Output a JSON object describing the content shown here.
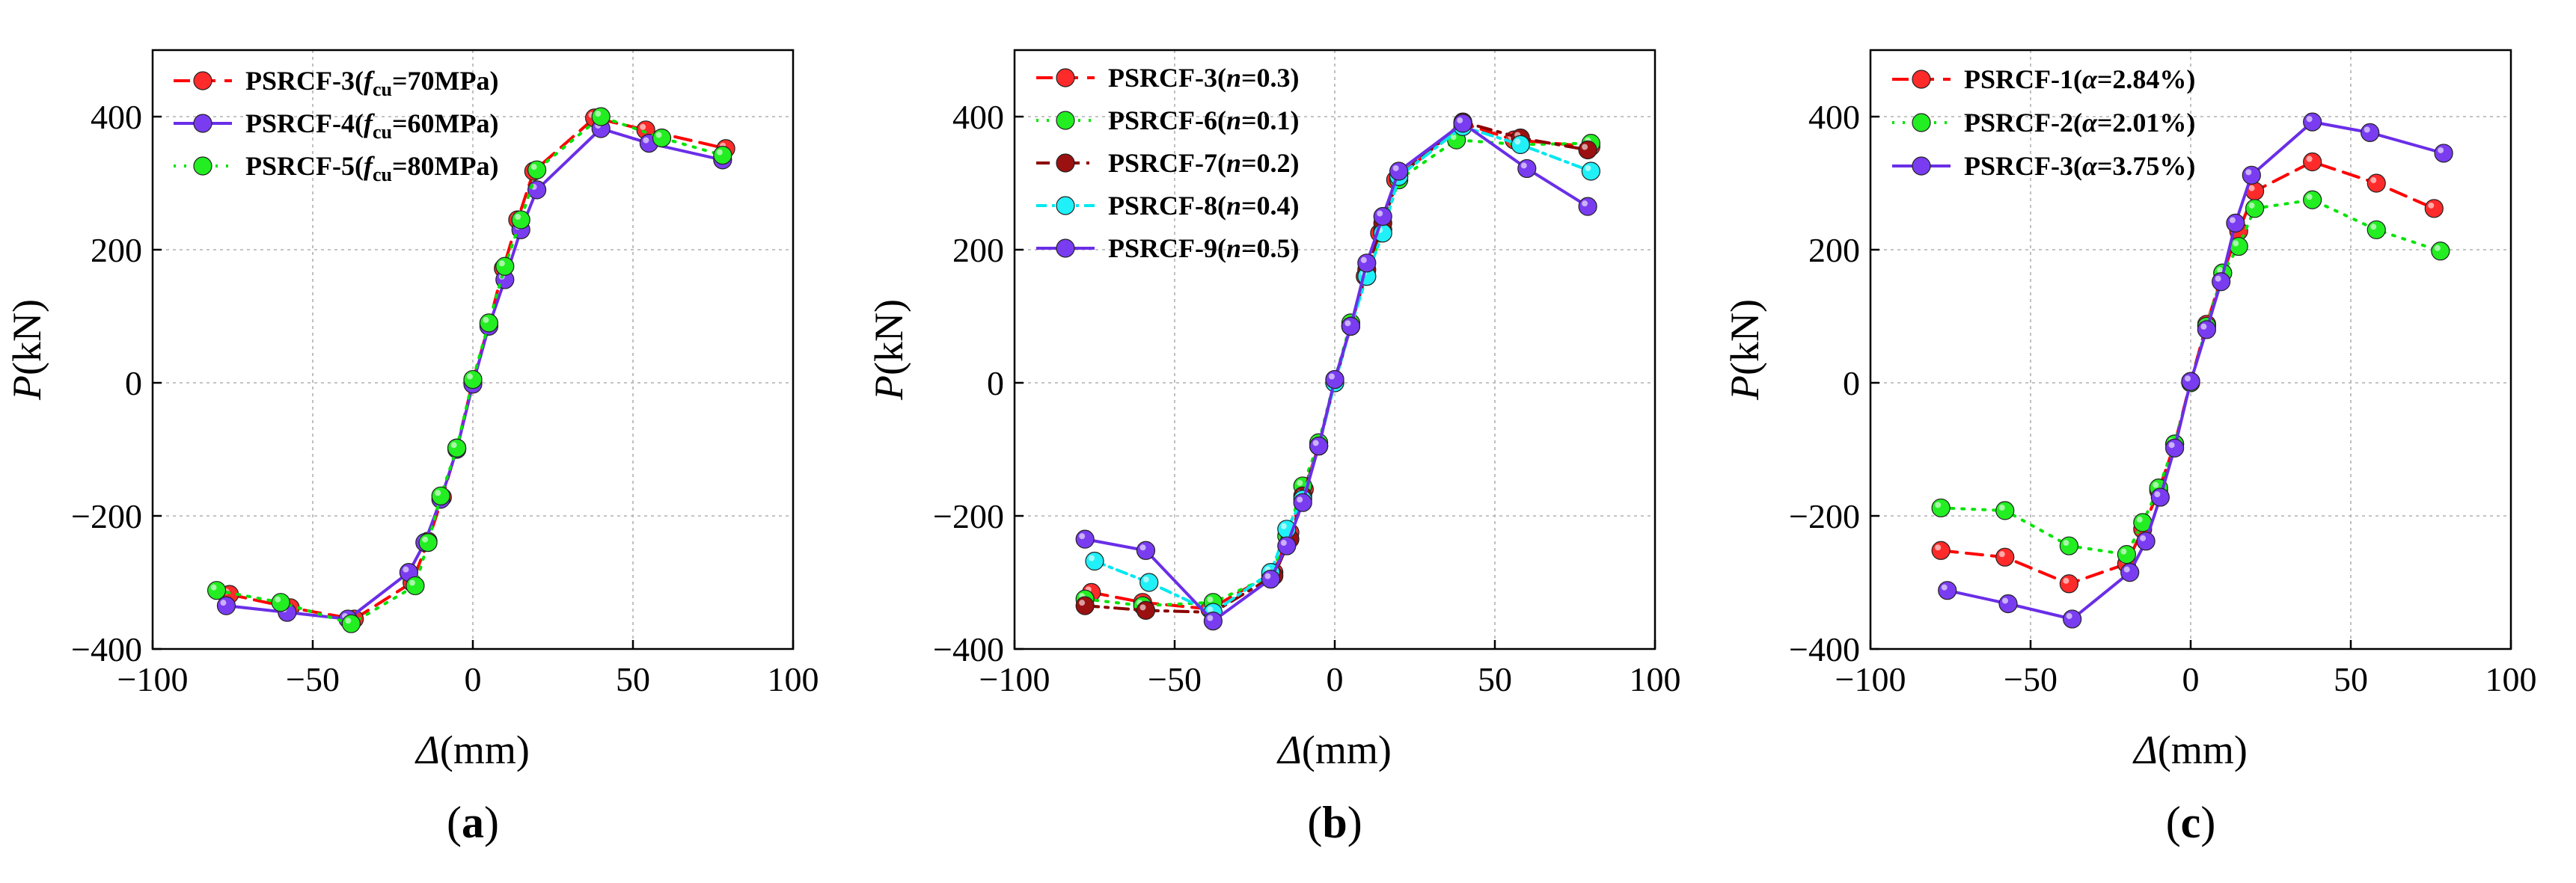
{
  "chart_data": [
    {
      "type": "line",
      "panel_label": {
        "open": "(",
        "letter": "a",
        "close": ")"
      },
      "xlabel": {
        "symbol": "Δ",
        "unit": "(mm)"
      },
      "ylabel": {
        "symbol": "P",
        "unit": "(kN)"
      },
      "xlim": [
        -100,
        100
      ],
      "ylim": [
        -400,
        500
      ],
      "xticks": [
        -100,
        -50,
        0,
        50,
        100
      ],
      "yticks": [
        -400,
        -200,
        0,
        200,
        400
      ],
      "grid": true,
      "legend_position": "top-left",
      "series": [
        {
          "name": "PSRCF-3(fcu=70MPa)",
          "label": {
            "prefix": "PSRCF-3(",
            "var": "f",
            "sub": "cu",
            "rest": "=70MPa)"
          },
          "color": "#ff0000",
          "marker_color": "#ff2a2a",
          "dash": "22 12",
          "x": [
            -76,
            -57,
            -37,
            -19,
            -14,
            -9.5,
            -5,
            0,
            5,
            9.5,
            14,
            19,
            38,
            54,
            79
          ],
          "y": [
            -318,
            -338,
            -355,
            -300,
            -238,
            -172,
            -98,
            2,
            88,
            172,
            245,
            318,
            398,
            380,
            352
          ]
        },
        {
          "name": "PSRCF-4(fcu=60MPa)",
          "label": {
            "prefix": "PSRCF-4(",
            "var": "f",
            "sub": "cu",
            "rest": "=60MPa)"
          },
          "color": "#6a2ee8",
          "marker_color": "#7a3cf0",
          "dash": "",
          "x": [
            -77,
            -58,
            -39,
            -20,
            -15,
            -10,
            -5,
            0,
            5,
            10,
            15,
            20,
            40,
            55,
            78
          ],
          "y": [
            -335,
            -345,
            -355,
            -285,
            -240,
            -175,
            -100,
            -2,
            85,
            155,
            230,
            290,
            382,
            360,
            335
          ]
        },
        {
          "name": "PSRCF-5(fcu=80MPa)",
          "label": {
            "prefix": "PSRCF-5(",
            "var": "f",
            "sub": "cu",
            "rest": "=80MPa)"
          },
          "color": "#00e400",
          "marker_color": "#22ee22",
          "dash": "3 11",
          "x": [
            -80,
            -60,
            -38,
            -18,
            -14,
            -10,
            -5,
            0,
            5,
            10,
            15,
            20,
            40,
            59,
            78
          ],
          "y": [
            -312,
            -330,
            -362,
            -305,
            -240,
            -170,
            -98,
            5,
            90,
            175,
            245,
            320,
            400,
            368,
            342
          ]
        }
      ]
    },
    {
      "type": "line",
      "panel_label": {
        "open": "(",
        "letter": "b",
        "close": ")"
      },
      "xlabel": {
        "symbol": "Δ",
        "unit": "(mm)"
      },
      "ylabel": {
        "symbol": "P",
        "unit": "(kN)"
      },
      "xlim": [
        -100,
        100
      ],
      "ylim": [
        -400,
        500
      ],
      "xticks": [
        -100,
        -50,
        0,
        50,
        100
      ],
      "yticks": [
        -400,
        -200,
        0,
        200,
        400
      ],
      "grid": true,
      "legend_position": "top-left",
      "series": [
        {
          "name": "PSRCF-3(n=0.3)",
          "label": {
            "prefix": "PSRCF-3(",
            "var": "n",
            "sub": "",
            "rest": "=0.3)"
          },
          "color": "#ff0000",
          "marker_color": "#ff2a2a",
          "dash": "22 12",
          "x": [
            -76,
            -60,
            -39,
            -19,
            -14,
            -9.5,
            -5,
            0,
            5,
            9.5,
            14,
            19,
            40,
            56,
            80
          ],
          "y": [
            -315,
            -330,
            -340,
            -285,
            -225,
            -160,
            -95,
            2,
            85,
            160,
            225,
            305,
            390,
            365,
            355
          ]
        },
        {
          "name": "PSRCF-6(n=0.1)",
          "label": {
            "prefix": "PSRCF-6(",
            "var": "n",
            "sub": "",
            "rest": "=0.1)"
          },
          "color": "#00e400",
          "marker_color": "#22ee22",
          "dash": "3 11",
          "x": [
            -78,
            -60,
            -38,
            -20,
            -15,
            -10,
            -5,
            0,
            5,
            10,
            15,
            20,
            38,
            58,
            80
          ],
          "y": [
            -325,
            -335,
            -330,
            -290,
            -230,
            -155,
            -90,
            5,
            90,
            160,
            230,
            305,
            365,
            358,
            360
          ]
        },
        {
          "name": "PSRCF-7(n=0.2)",
          "label": {
            "prefix": "PSRCF-7(",
            "var": "n",
            "sub": "",
            "rest": "=0.2)"
          },
          "color": "#8b0000",
          "marker_color": "#9b1010",
          "dash": "18 9 4 9",
          "x": [
            -78,
            -59,
            -38,
            -19,
            -14,
            -10,
            -5,
            0,
            5,
            10,
            15,
            20,
            40,
            58,
            79
          ],
          "y": [
            -335,
            -342,
            -345,
            -290,
            -235,
            -170,
            -95,
            0,
            85,
            170,
            240,
            310,
            392,
            368,
            350
          ]
        },
        {
          "name": "PSRCF-8(n=0.4)",
          "label": {
            "prefix": "PSRCF-8(",
            "var": "n",
            "sub": "",
            "rest": "=0.4)"
          },
          "color": "#00e8f0",
          "marker_color": "#20f0f8",
          "dash": "14 7 4 7",
          "x": [
            -75,
            -58,
            -38,
            -20,
            -15,
            -10,
            -5,
            0,
            5,
            10,
            15,
            20,
            40,
            58,
            80
          ],
          "y": [
            -268,
            -300,
            -345,
            -285,
            -220,
            -175,
            -95,
            0,
            85,
            160,
            225,
            310,
            385,
            358,
            318
          ]
        },
        {
          "name": "PSRCF-9(n=0.5)",
          "label": {
            "prefix": "PSRCF-9(",
            "var": "n",
            "sub": "",
            "rest": "=0.5)"
          },
          "color": "#6a2ee8",
          "marker_color": "#7a3cf0",
          "dash": "",
          "x": [
            -78,
            -59,
            -38,
            -20,
            -15,
            -10,
            -5,
            0,
            5,
            10,
            15,
            20,
            40,
            60,
            79
          ],
          "y": [
            -235,
            -252,
            -358,
            -295,
            -245,
            -180,
            -95,
            5,
            85,
            180,
            250,
            318,
            390,
            322,
            265
          ]
        }
      ]
    },
    {
      "type": "line",
      "panel_label": {
        "open": "(",
        "letter": "c",
        "close": ")"
      },
      "xlabel": {
        "symbol": "Δ",
        "unit": "(mm)"
      },
      "ylabel": {
        "symbol": "P",
        "unit": "(kN)"
      },
      "xlim": [
        -100,
        100
      ],
      "ylim": [
        -400,
        500
      ],
      "xticks": [
        -100,
        -50,
        0,
        50,
        100
      ],
      "yticks": [
        -400,
        -200,
        0,
        200,
        400
      ],
      "grid": true,
      "legend_position": "top-left",
      "series": [
        {
          "name": "PSRCF-1(α=2.84%)",
          "label": {
            "prefix": "PSRCF-1(",
            "var": "α",
            "sub": "",
            "rest": "=2.84%)"
          },
          "color": "#ff0000",
          "marker_color": "#ff2a2a",
          "dash": "22 12",
          "x": [
            -78,
            -58,
            -38,
            -20,
            -15,
            -10,
            -5,
            0,
            5,
            10,
            15,
            20,
            38,
            58,
            76
          ],
          "y": [
            -252,
            -262,
            -302,
            -272,
            -220,
            -162,
            -92,
            2,
            88,
            165,
            228,
            288,
            332,
            300,
            262
          ]
        },
        {
          "name": "PSRCF-2(α=2.01%)",
          "label": {
            "prefix": "PSRCF-2(",
            "var": "α",
            "sub": "",
            "rest": "=2.01%)"
          },
          "color": "#00e400",
          "marker_color": "#22ee22",
          "dash": "3 11",
          "x": [
            -78,
            -58,
            -38,
            -20,
            -15,
            -10,
            -5,
            0,
            5,
            10,
            15,
            20,
            38,
            58,
            78
          ],
          "y": [
            -188,
            -192,
            -245,
            -258,
            -210,
            -158,
            -92,
            0,
            85,
            165,
            205,
            262,
            275,
            230,
            198
          ]
        },
        {
          "name": "PSRCF-3(α=3.75%)",
          "label": {
            "prefix": "PSRCF-3(",
            "var": "α",
            "sub": "",
            "rest": "=3.75%)"
          },
          "color": "#6a2ee8",
          "marker_color": "#7a3cf0",
          "dash": "",
          "x": [
            -76,
            -57,
            -37,
            -19,
            -14,
            -9.5,
            -5,
            0,
            5,
            9.5,
            14,
            19,
            38,
            56,
            79
          ],
          "y": [
            -312,
            -332,
            -355,
            -285,
            -238,
            -172,
            -98,
            2,
            80,
            152,
            240,
            312,
            392,
            376,
            345
          ]
        }
      ]
    }
  ]
}
